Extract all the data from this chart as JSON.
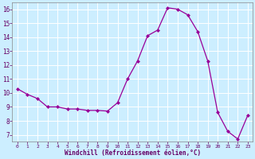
{
  "hours": [
    0,
    1,
    2,
    3,
    4,
    5,
    6,
    7,
    8,
    9,
    10,
    11,
    12,
    13,
    14,
    15,
    16,
    17,
    18,
    19,
    20,
    21,
    22,
    23
  ],
  "temps": [
    10.3,
    9.9,
    9.6,
    9.0,
    9.0,
    8.85,
    8.85,
    8.75,
    8.75,
    8.7,
    9.3,
    11.0,
    12.3,
    14.1,
    14.5,
    16.1,
    16.0,
    15.6,
    14.4,
    12.3,
    8.6,
    7.25,
    6.7,
    8.4
  ],
  "line_color": "#990099",
  "marker": "D",
  "marker_size": 2.0,
  "bg_color": "#cceeff",
  "grid_color": "#aaddcc",
  "xlabel": "Windchill (Refroidissement éolien,°C)",
  "yticks": [
    7,
    8,
    9,
    10,
    11,
    12,
    13,
    14,
    15,
    16
  ],
  "xlim": [
    -0.5,
    23.5
  ],
  "ylim": [
    6.5,
    16.5
  ]
}
